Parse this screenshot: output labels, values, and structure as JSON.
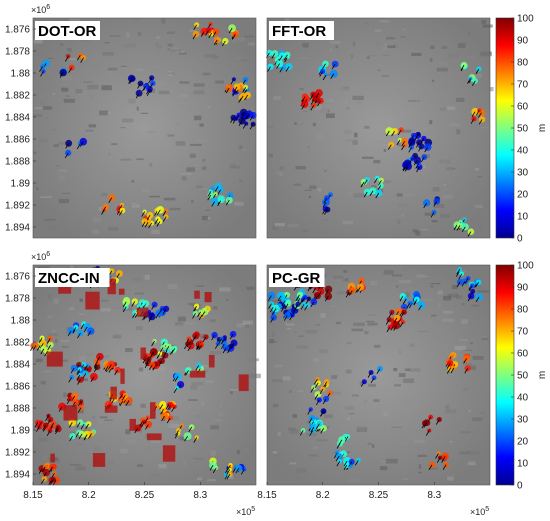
{
  "chart_data": {
    "type": "heatmap",
    "colorbar": {
      "unit": "m",
      "range": [
        0,
        100
      ],
      "ticks": [
        "100",
        "90",
        "80",
        "70",
        "60",
        "50",
        "40",
        "30",
        "20",
        "10",
        "0"
      ],
      "colormap": "jet"
    },
    "x_axis": {
      "ticks": [
        "8.15",
        "8.2",
        "8.25",
        "8.3"
      ],
      "exponent": "×10^5",
      "range": [
        8.15,
        8.35
      ]
    },
    "y_axis": {
      "ticks": [
        "1.876",
        "1.878",
        "1.88",
        "1.882",
        "1.884",
        "1.886",
        "1.888",
        "1.89",
        "1.892",
        "1.894"
      ],
      "exponent": "×10^6",
      "range": [
        1.875,
        1.895
      ]
    },
    "panels": [
      {
        "label": "DOT-OR"
      },
      {
        "label": "FFT-OR"
      },
      {
        "label": "ZNCC-IN"
      },
      {
        "label": "PC-GR"
      }
    ]
  }
}
